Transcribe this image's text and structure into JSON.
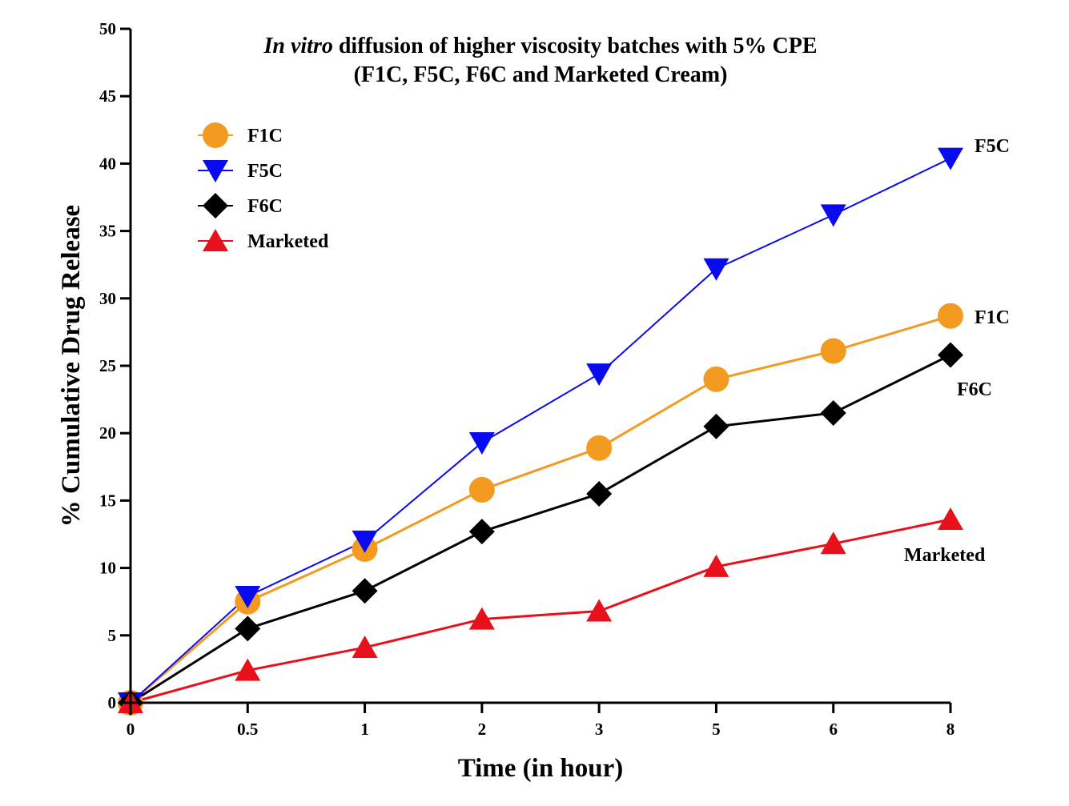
{
  "chart_data": {
    "type": "line",
    "title_italic": "In vitro",
    "title_rest": " diffusion of higher viscosity batches with 5% CPE",
    "subtitle": "(F1C, F5C, F6C and Marketed Cream)",
    "xlabel": "Time (in hour)",
    "ylabel": "% Cumulative Drug Release",
    "ylim": [
      0,
      50
    ],
    "yticks": [
      "0",
      "5",
      "10",
      "15",
      "20",
      "25",
      "30",
      "35",
      "40",
      "45",
      "50"
    ],
    "x_categories": [
      "0",
      "0.5",
      "1",
      "2",
      "3",
      "5",
      "6",
      "8"
    ],
    "legend_position": "top-left",
    "grid": false,
    "series": [
      {
        "name": "F1C",
        "end_label": "F1C",
        "color": "#f39a21",
        "marker": "circle",
        "values": [
          0,
          7.5,
          11.4,
          15.8,
          18.9,
          24.0,
          26.1,
          28.7
        ]
      },
      {
        "name": "F5C",
        "end_label": "F5C",
        "color": "#0a0af0",
        "marker": "triangle-down",
        "values": [
          0,
          7.9,
          12.0,
          19.3,
          24.4,
          32.2,
          36.2,
          40.4
        ]
      },
      {
        "name": "F6C",
        "end_label": "F6C",
        "color": "#000000",
        "marker": "diamond",
        "values": [
          0,
          5.5,
          8.3,
          12.7,
          15.5,
          20.5,
          21.5,
          25.8
        ]
      },
      {
        "name": "Marketed",
        "end_label": "Marketed",
        "color": "#e8101a",
        "marker": "triangle-up",
        "values": [
          0,
          2.4,
          4.1,
          6.2,
          6.8,
          10.1,
          11.8,
          13.6
        ]
      }
    ]
  }
}
